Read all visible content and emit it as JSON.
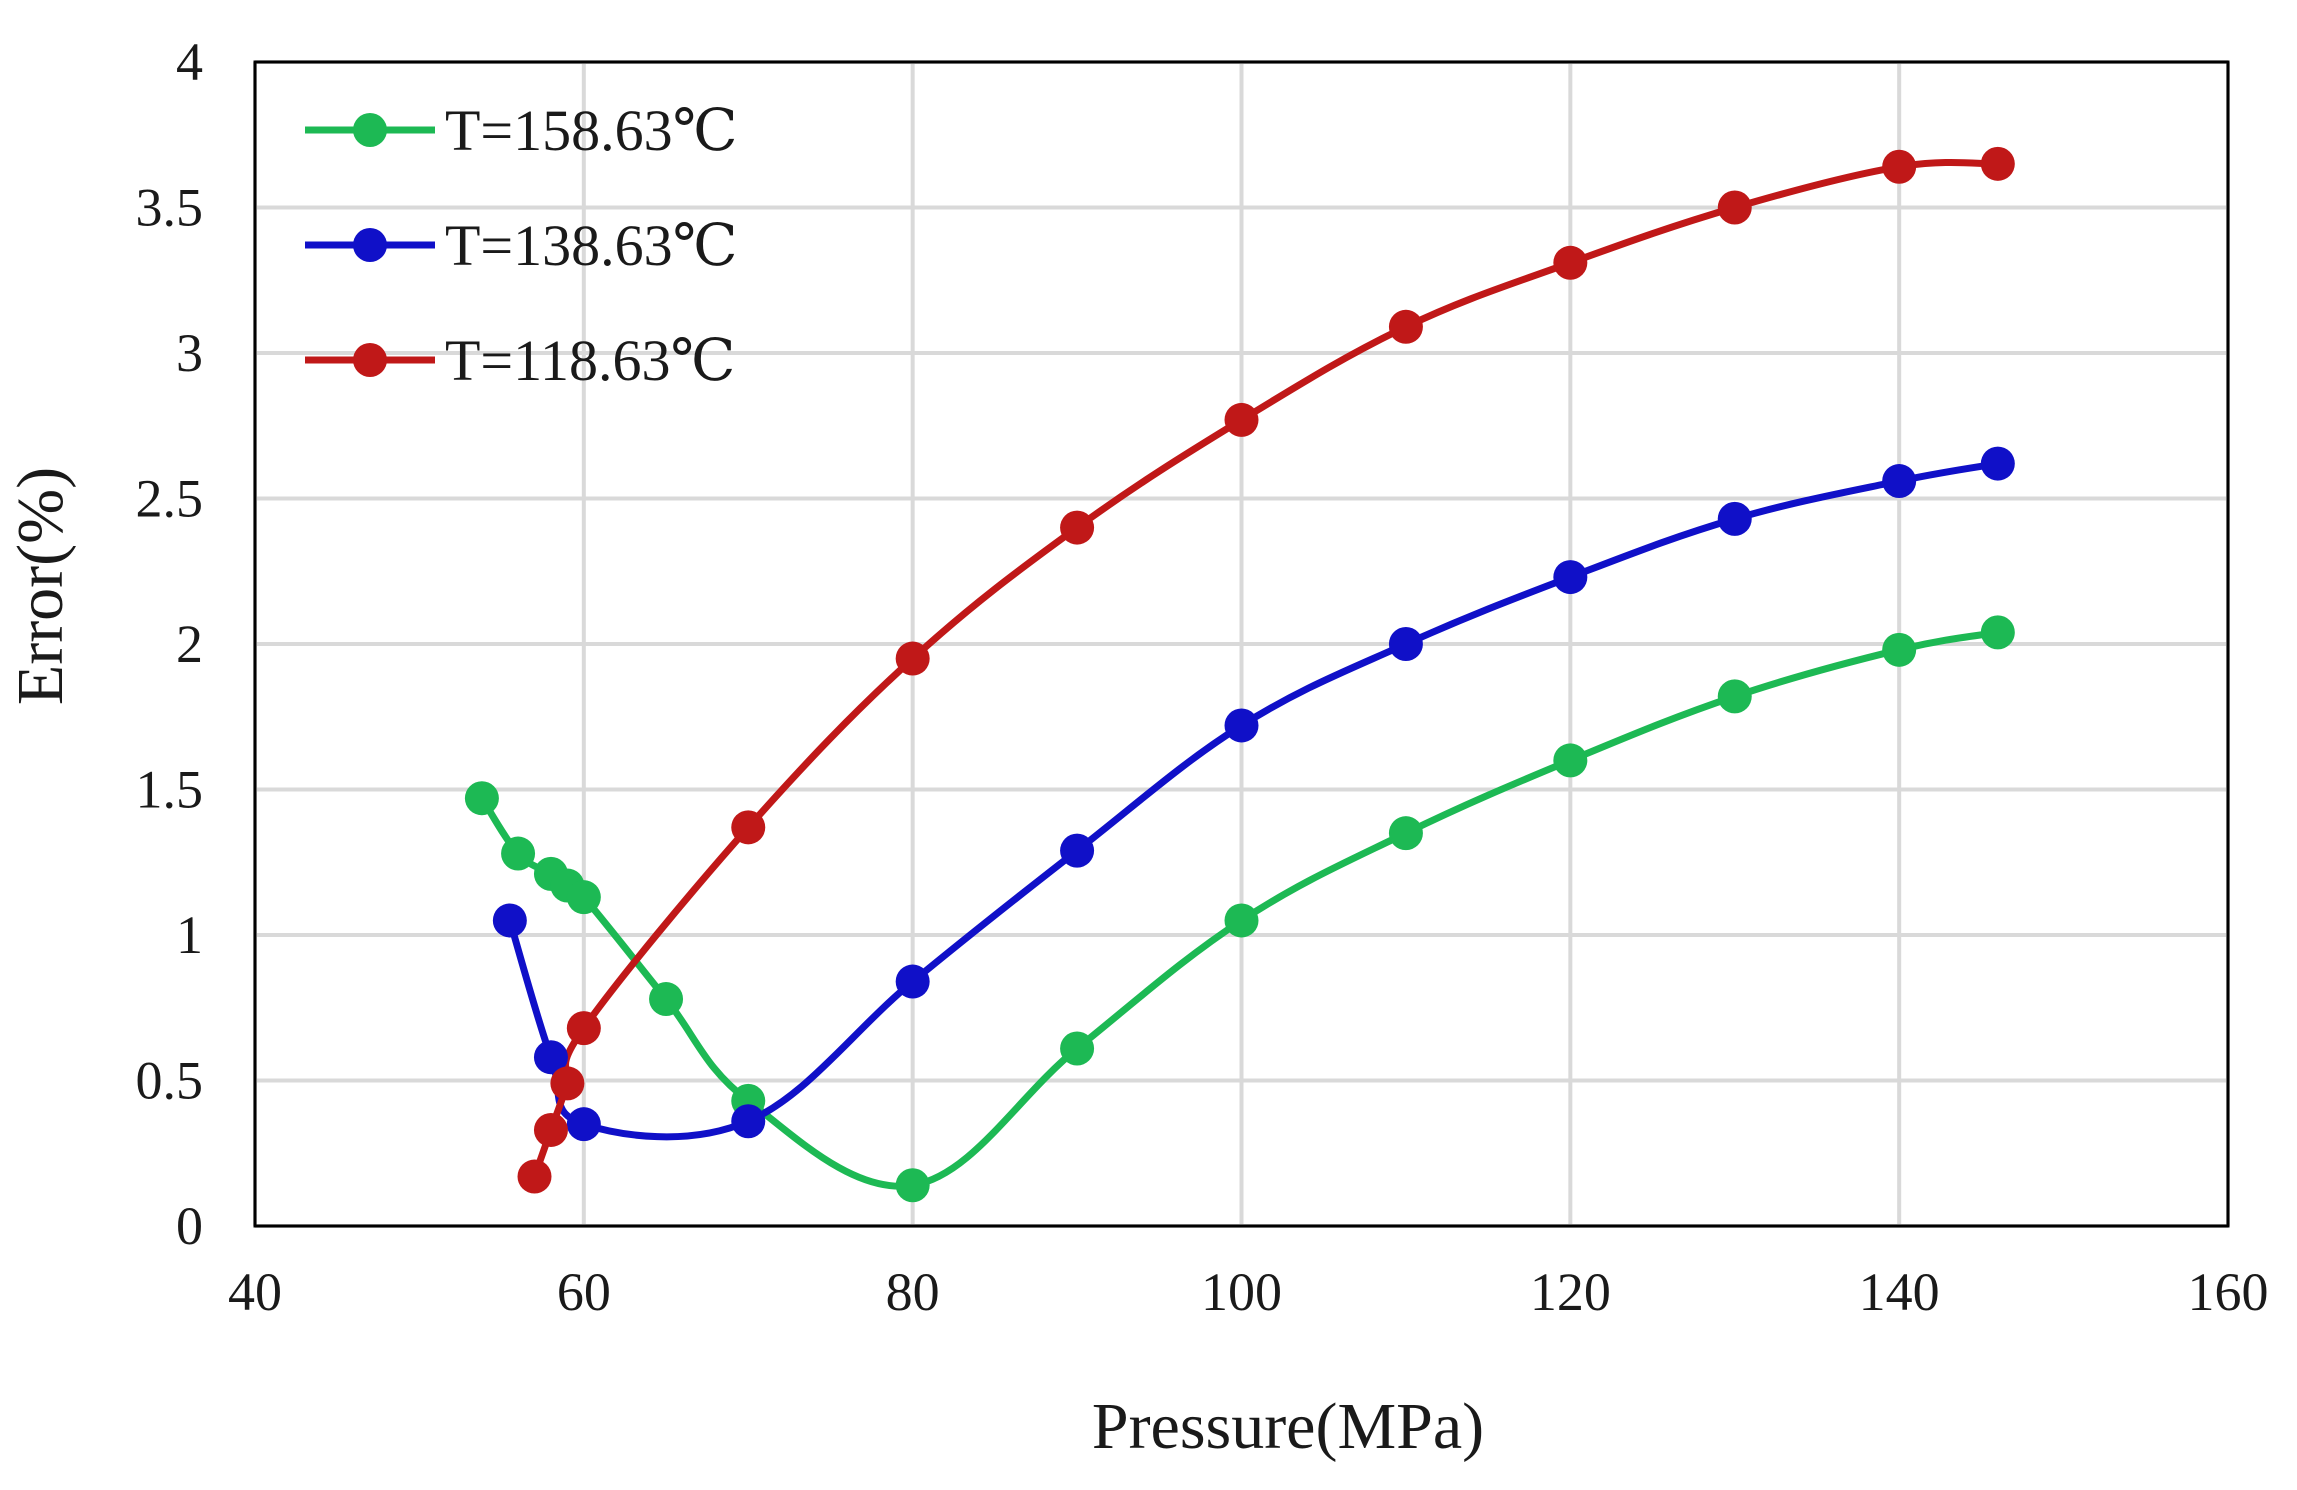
{
  "chart_data": {
    "type": "line",
    "title": "",
    "xlabel": "Pressure(MPa)",
    "ylabel": "Error(%)",
    "xlim": [
      40,
      160
    ],
    "ylim": [
      0,
      4
    ],
    "xticks": [
      "40",
      "60",
      "80",
      "100",
      "120",
      "140",
      "160"
    ],
    "yticks": [
      "0",
      "0.5",
      "1",
      "1.5",
      "2",
      "2.5",
      "3",
      "3.5",
      "4"
    ],
    "grid": true,
    "legend_position": "top-left",
    "series": [
      {
        "name": "T=158.63℃",
        "color": "#1db954",
        "x": [
          53.8,
          56,
          58,
          59,
          60,
          65,
          70,
          80,
          90,
          100,
          110,
          120,
          130,
          140,
          146
        ],
        "y": [
          1.47,
          1.28,
          1.21,
          1.17,
          1.13,
          0.78,
          0.43,
          0.14,
          0.61,
          1.05,
          1.35,
          1.6,
          1.82,
          1.98,
          2.04
        ]
      },
      {
        "name": "T=138.63℃",
        "color": "#1010c8",
        "x": [
          55.5,
          58,
          60,
          70,
          80,
          90,
          100,
          110,
          120,
          130,
          140,
          146
        ],
        "y": [
          1.05,
          0.58,
          0.35,
          0.36,
          0.84,
          1.29,
          1.72,
          2.0,
          2.23,
          2.43,
          2.56,
          2.62
        ]
      },
      {
        "name": "T=118.63℃",
        "color": "#c01818",
        "x": [
          57,
          58,
          59,
          60,
          70,
          80,
          90,
          100,
          110,
          120,
          130,
          140,
          146
        ],
        "y": [
          0.17,
          0.33,
          0.49,
          0.68,
          1.37,
          1.95,
          2.4,
          2.77,
          3.09,
          3.31,
          3.5,
          3.64,
          3.65
        ]
      }
    ]
  }
}
